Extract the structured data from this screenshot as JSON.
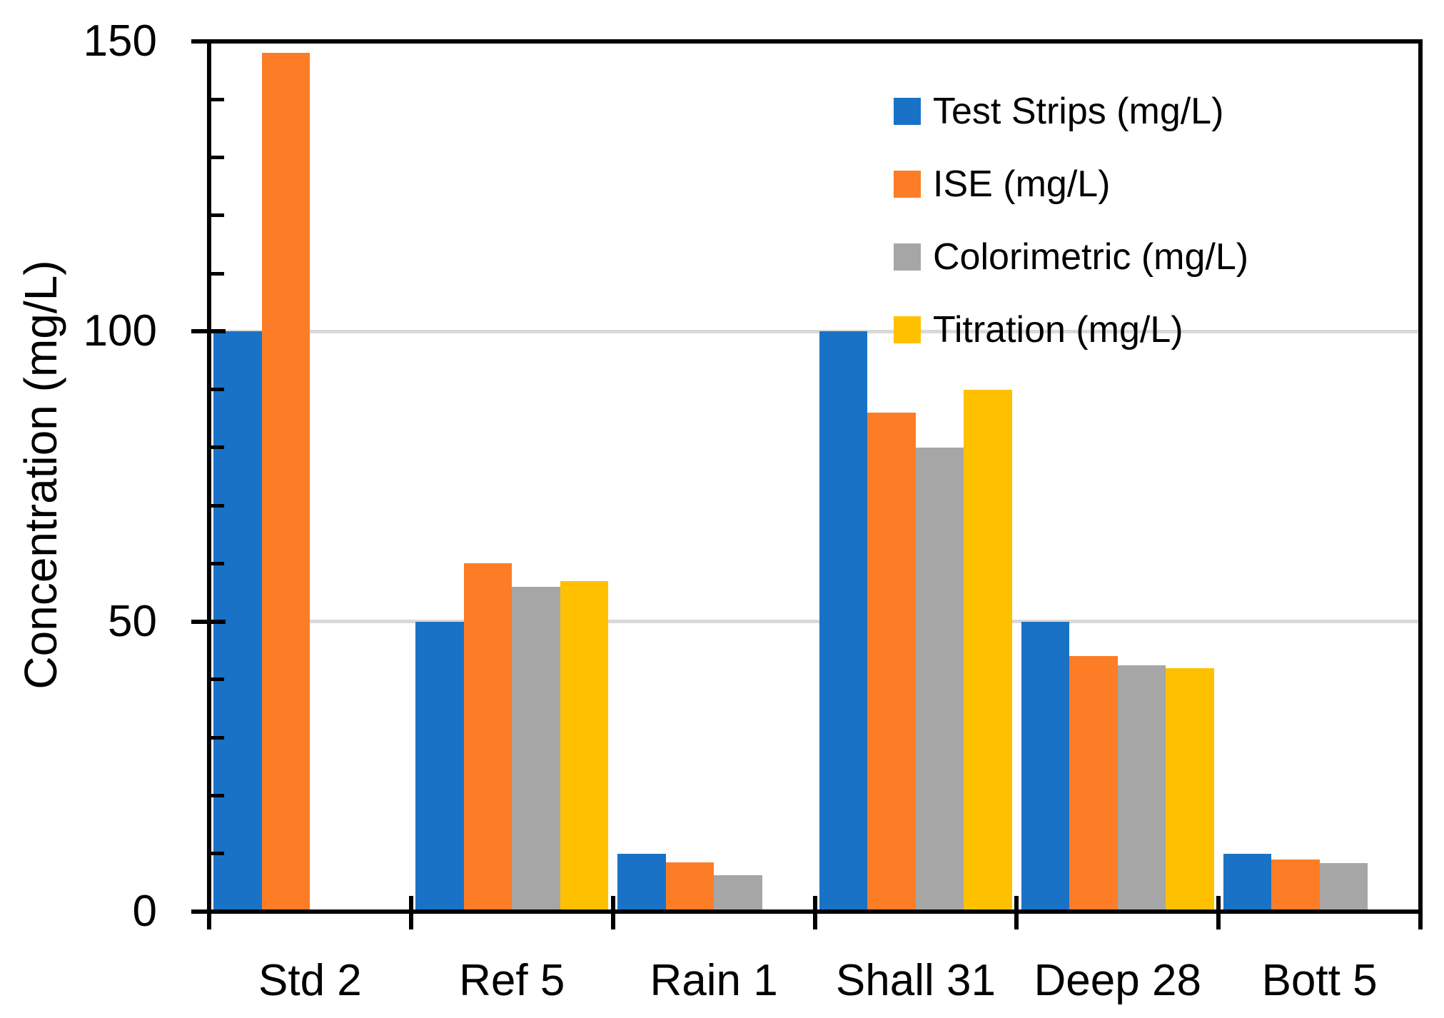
{
  "chart_data": {
    "type": "bar",
    "title": "",
    "xlabel": "",
    "ylabel": "Concentration (mg/L)",
    "ylim": [
      0,
      150
    ],
    "ytick_major": [
      0,
      50,
      100,
      150
    ],
    "ytick_minor_step": 10,
    "gridlines_at": [
      50,
      100
    ],
    "grid": "horizontal-major-only",
    "legend_position": "inside-upper-right",
    "categories": [
      "Std 2",
      "Ref 5",
      "Rain 1",
      "Shall 31",
      "Deep 28",
      "Bott 5"
    ],
    "series": [
      {
        "name": "Test Strips (mg/L)",
        "color": "#1a72c6",
        "values": [
          100,
          50,
          10,
          100,
          50,
          10
        ]
      },
      {
        "name": "ISE (mg/L)",
        "color": "#fc7d26",
        "values": [
          148,
          60,
          8.5,
          86,
          44,
          9
        ]
      },
      {
        "name": "Colorimetric (mg/L)",
        "color": "#a6a6a6",
        "values": [
          null,
          56,
          6.3,
          80,
          42.5,
          8.4
        ]
      },
      {
        "name": "Titration (mg/L)",
        "color": "#ffc000",
        "values": [
          null,
          57,
          null,
          90,
          42,
          null
        ]
      }
    ]
  },
  "colors": {
    "axis": "#000000",
    "gridline": "#d9d9d9",
    "background": "#ffffff",
    "text": "#000000"
  }
}
